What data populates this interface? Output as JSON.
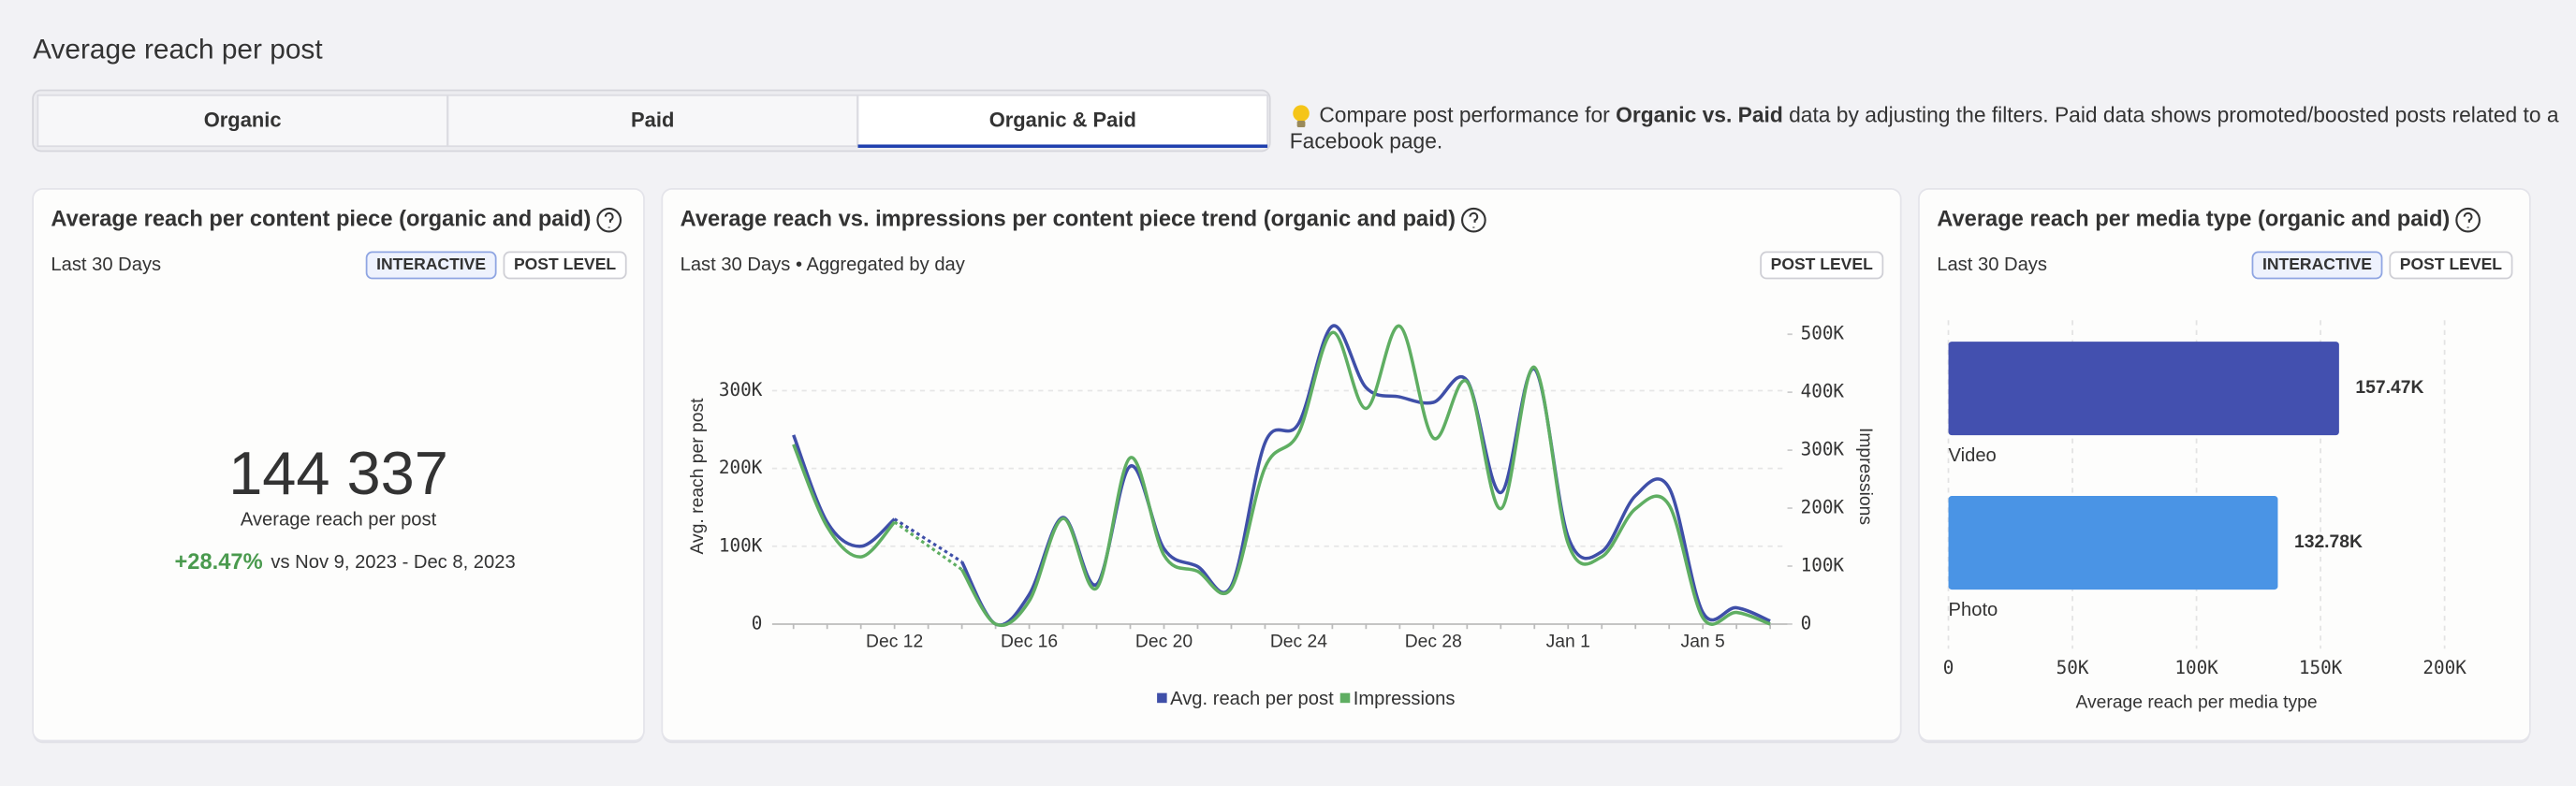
{
  "header": {
    "title": "Average reach per post"
  },
  "tabs": [
    "Organic",
    "Paid",
    "Organic & Paid"
  ],
  "active_tab": 2,
  "info": {
    "lead": "Compare post performance for ",
    "bold": "Organic vs. Paid",
    "rest": " data by adjusting the filters. Paid data shows promoted/boosted posts related to a",
    "line2": "Facebook page."
  },
  "cards": [
    {
      "title": "Average reach per content piece (organic and paid)",
      "period": "Last 30 Days",
      "badges": [
        "INTERACTIVE",
        "POST LEVEL"
      ],
      "kpi": {
        "value": "144 337",
        "label": "Average reach per post",
        "change": "+28.47%",
        "comparison": "vs Nov 9, 2023 - Dec 8, 2023"
      }
    },
    {
      "title": "Average reach vs. impressions per content piece trend (organic and paid)",
      "period": "Last 30 Days • Aggregated by day",
      "badges": [
        "POST LEVEL"
      ]
    },
    {
      "title": "Average reach per media type (organic and paid)",
      "period": "Last 30 Days",
      "badges": [
        "INTERACTIVE",
        "POST LEVEL"
      ]
    }
  ],
  "chart_data": [
    {
      "type": "line",
      "categories": [
        null,
        null,
        null,
        "Dec 12",
        null,
        null,
        null,
        "Dec 16",
        null,
        null,
        null,
        "Dec 20",
        null,
        null,
        null,
        "Dec 24",
        null,
        null,
        null,
        "Dec 28",
        null,
        null,
        null,
        "Jan 1",
        null,
        null,
        null,
        "Jan 5",
        null,
        null
      ],
      "series": [
        {
          "name": "Avg. reach per post",
          "color": "#3f4fa8",
          "values": [
            243000,
            131000,
            100000,
            135000,
            null,
            80000,
            0,
            38000,
            137000,
            51000,
            203000,
            97000,
            74000,
            49000,
            233000,
            258000,
            383000,
            304000,
            292000,
            285000,
            313000,
            169000,
            328000,
            112000,
            93000,
            165000,
            175000,
            15000,
            21000,
            4000
          ]
        },
        {
          "name": "Impressions",
          "color": "#5fae62",
          "axis": "y2",
          "values": [
            310000,
            168000,
            116000,
            176000,
            null,
            94000,
            0,
            40000,
            182000,
            62000,
            287000,
            119000,
            91000,
            62000,
            270000,
            330000,
            503000,
            372000,
            514000,
            321000,
            418000,
            199000,
            443000,
            139000,
            116000,
            199000,
            205000,
            11000,
            20000,
            0
          ]
        }
      ],
      "ylabel": "Avg. reach per post",
      "y2label": "Impressions",
      "ylim": [
        0,
        380000
      ],
      "yticks": [
        0,
        {
          "value": 100000,
          "label": "100K"
        },
        {
          "value": 200000,
          "label": "200K"
        },
        {
          "value": 300000,
          "label": "300K"
        }
      ],
      "y2lim": [
        0,
        510000
      ],
      "y2ticks": [
        0,
        {
          "value": 100000,
          "label": "100K"
        },
        {
          "value": 200000,
          "label": "200K"
        },
        {
          "value": 300000,
          "label": "300K"
        },
        {
          "value": 400000,
          "label": "400K"
        },
        {
          "value": 500000,
          "label": "500K"
        }
      ],
      "grid": true,
      "legend": "bottom"
    },
    {
      "type": "barh",
      "categories": [
        "Video",
        "Photo"
      ],
      "values": [
        157470,
        132780
      ],
      "value_labels": [
        "157.47K",
        "132.78K"
      ],
      "colors": [
        "#4350af",
        "#4a94e5"
      ],
      "xlim": [
        0,
        200000
      ],
      "xticks": [
        0,
        {
          "value": 50000,
          "label": "50K"
        },
        {
          "value": 100000,
          "label": "100K"
        },
        {
          "value": 150000,
          "label": "150K"
        },
        {
          "value": 200000,
          "label": "200K"
        }
      ],
      "xlabel": "Average reach per media type",
      "grid": true
    }
  ]
}
